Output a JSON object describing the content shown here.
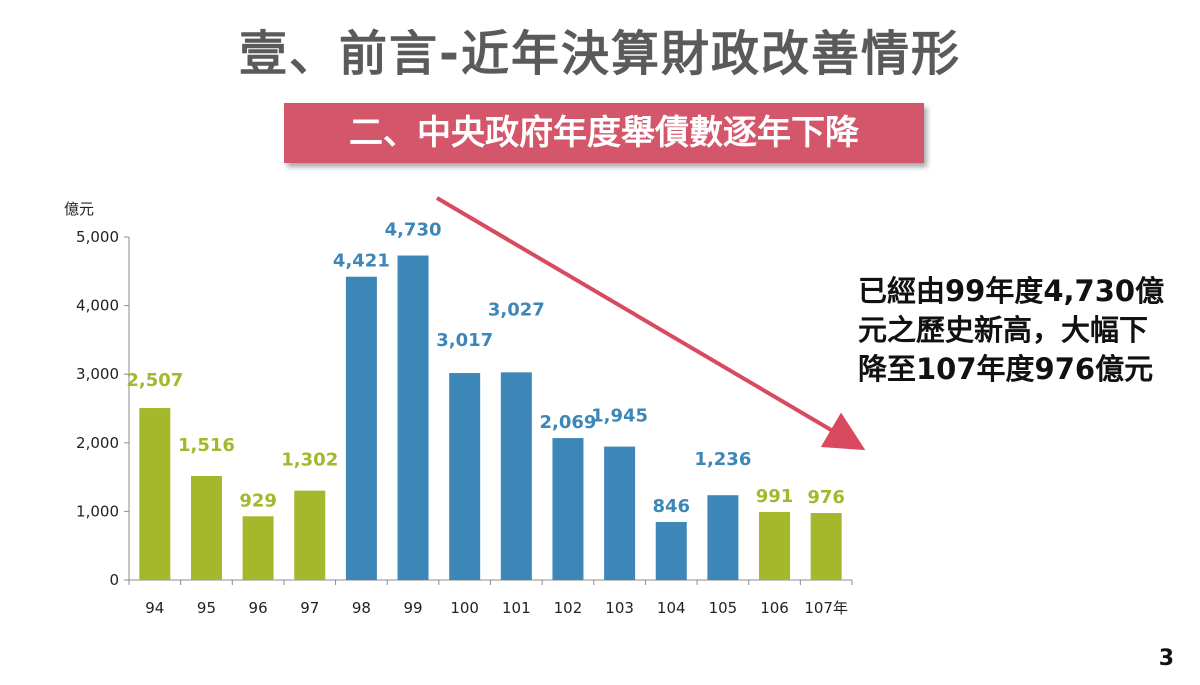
{
  "slide": {
    "title": "壹、前言-近年決算財政改善情形",
    "subtitle": "二、中央政府年度舉債數逐年下降",
    "annotation_lines": [
      "已經由99年度4,730億",
      "元之歷史新高，大幅下",
      "降至107年度976億元"
    ],
    "page_number": "3"
  },
  "colors": {
    "green": "#a5b72a",
    "blue": "#3d87b8",
    "band": "#d4566b",
    "arrow": "#d94a5e"
  },
  "chart_data": {
    "type": "bar",
    "ylabel": "億元",
    "ylim": [
      0,
      5000
    ],
    "yticks": [
      0,
      1000,
      2000,
      3000,
      4000,
      5000
    ],
    "ytick_labels": [
      "0",
      "1,000",
      "2,000",
      "3,000",
      "4,000",
      "5,000"
    ],
    "categories": [
      "94",
      "95",
      "96",
      "97",
      "98",
      "99",
      "100",
      "101",
      "102",
      "103",
      "104",
      "105",
      "106",
      "107年"
    ],
    "values": [
      2507,
      1516,
      929,
      1302,
      4421,
      4730,
      3017,
      3027,
      2069,
      1945,
      846,
      1236,
      991,
      976
    ],
    "value_labels": [
      "2,507",
      "1,516",
      "929",
      "1,302",
      "4,421",
      "4,730",
      "3,017",
      "3,027",
      "2,069",
      "1,945",
      "846",
      "1,236",
      "991",
      "976"
    ],
    "bar_colors": [
      "green",
      "green",
      "green",
      "green",
      "blue",
      "blue",
      "blue",
      "blue",
      "blue",
      "blue",
      "blue",
      "blue",
      "green",
      "green"
    ],
    "trend_arrow": "down"
  }
}
